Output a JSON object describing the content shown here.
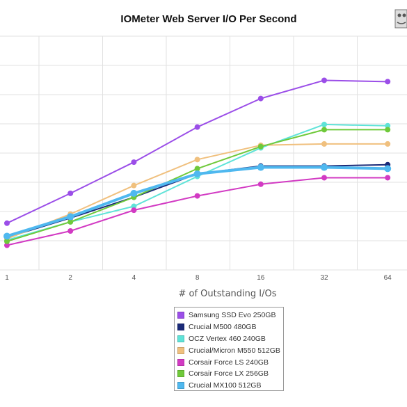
{
  "chart_data": {
    "type": "line",
    "title": "IOMeter Web Server I/O Per Second",
    "xlabel": "# of Outstanding I/Os",
    "ylabel": "",
    "x": [
      "1",
      "2",
      "4",
      "8",
      "16",
      "32",
      "64"
    ],
    "ylim": [
      0,
      9
    ],
    "grid": true,
    "legend_position": "bottom",
    "series": [
      {
        "name": "Samsung SSD Evo 250GB",
        "color": "#9b4ee8",
        "values": [
          1.8,
          2.95,
          4.15,
          5.5,
          6.6,
          7.3,
          7.25
        ]
      },
      {
        "name": "Crucial M500 480GB",
        "color": "#1a2a78",
        "values": [
          1.25,
          2.0,
          2.8,
          3.7,
          4.0,
          4.0,
          4.05
        ]
      },
      {
        "name": "OCZ Vertex 460 240GB",
        "color": "#5fe3d8",
        "values": [
          1.15,
          1.85,
          2.45,
          3.6,
          4.7,
          5.6,
          5.55
        ]
      },
      {
        "name": "Crucial/Micron M550 512GB",
        "color": "#f0c07e",
        "values": [
          1.2,
          2.15,
          3.25,
          4.25,
          4.8,
          4.85,
          4.85
        ]
      },
      {
        "name": "Corsair Force LS 240GB",
        "color": "#d23ac3",
        "values": [
          0.95,
          1.5,
          2.3,
          2.85,
          3.3,
          3.55,
          3.55
        ]
      },
      {
        "name": "Corsair Force LX 256GB",
        "color": "#6fc93a",
        "values": [
          1.1,
          1.85,
          2.8,
          3.9,
          4.75,
          5.4,
          5.4
        ]
      },
      {
        "name": "Crucial MX100 512GB",
        "color": "#4fb8ef",
        "values": [
          1.3,
          2.05,
          2.95,
          3.7,
          3.95,
          3.95,
          3.9
        ]
      }
    ]
  }
}
